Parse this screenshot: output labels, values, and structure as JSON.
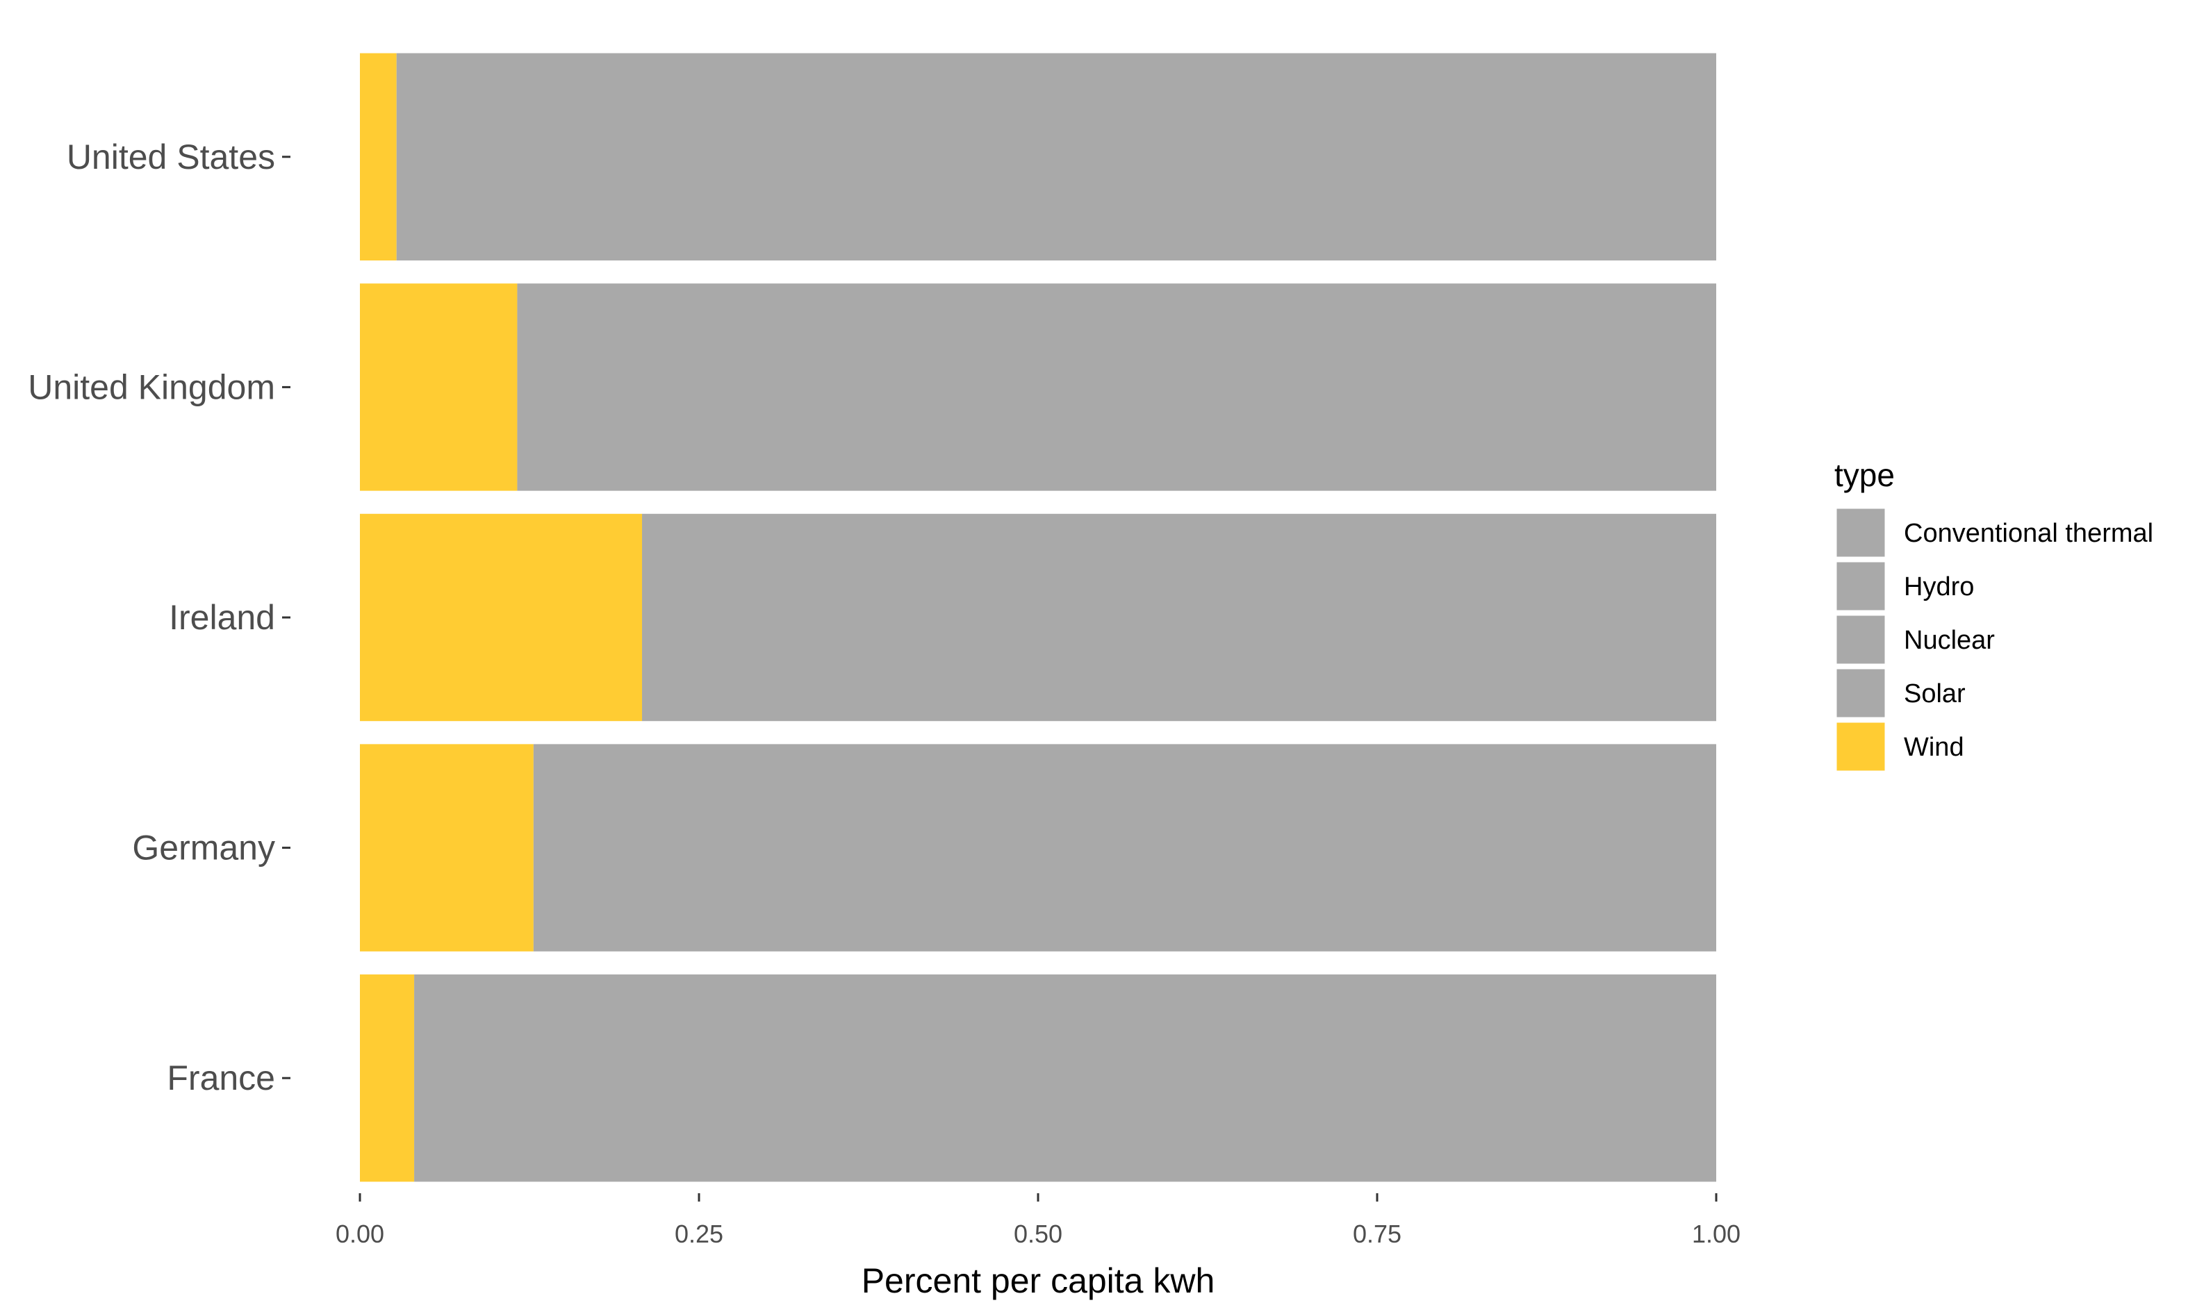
{
  "chart_data": {
    "type": "bar",
    "orientation": "horizontal",
    "stacked": true,
    "categories": [
      "United States",
      "United Kingdom",
      "Ireland",
      "Germany",
      "France"
    ],
    "series": [
      {
        "name": "Conventional thermal",
        "color": "#A9A9A9",
        "values": [
          0.973,
          0.884,
          0.792,
          0.872,
          0.96
        ]
      },
      {
        "name": "Hydro",
        "color": "#A9A9A9",
        "values": [
          0,
          0,
          0,
          0,
          0
        ]
      },
      {
        "name": "Nuclear",
        "color": "#A9A9A9",
        "values": [
          0,
          0,
          0,
          0,
          0
        ]
      },
      {
        "name": "Solar",
        "color": "#A9A9A9",
        "values": [
          0,
          0,
          0,
          0,
          0
        ]
      },
      {
        "name": "Wind",
        "color": "#FFCC33",
        "values": [
          0.027,
          0.116,
          0.208,
          0.128,
          0.04
        ]
      }
    ],
    "xlabel": "Percent per capita kwh",
    "ylabel": "",
    "xlim": [
      0,
      1
    ],
    "xticks": [
      "0.00",
      "0.25",
      "0.50",
      "0.75",
      "1.00"
    ],
    "legend": {
      "title": "type",
      "position": "right"
    },
    "grid": false
  }
}
